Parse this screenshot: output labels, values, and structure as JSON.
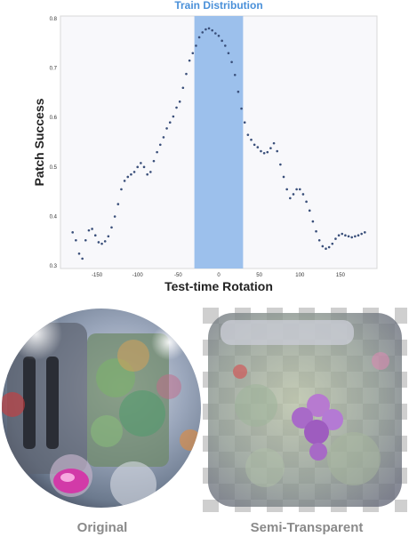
{
  "chart_data": {
    "type": "scatter",
    "title": "Train Distribution",
    "xlabel": "Test-time Rotation",
    "ylabel": "Patch Success",
    "xlim": [
      -195,
      195
    ],
    "ylim": [
      0.295,
      0.805
    ],
    "xticks": [
      -150,
      -100,
      -50,
      0,
      50,
      100,
      150
    ],
    "xtick_labels": [
      "-150",
      "-100",
      "-50",
      "0",
      "50",
      "100",
      "150"
    ],
    "yticks": [
      0.3,
      0.4,
      0.5,
      0.6,
      0.7,
      0.8
    ],
    "ytick_labels": [
      "0.3",
      "0.4",
      "0.5",
      "0.6",
      "0.7",
      "0.8"
    ],
    "shaded_region": [
      -30,
      30
    ],
    "colors": {
      "points": "#3a4f7a",
      "band": "#9cc0ec",
      "title": "#4a90d9",
      "plot_bg": "#f8f8fb"
    },
    "x": [
      -180,
      -176,
      -172,
      -168,
      -164,
      -160,
      -156,
      -152,
      -148,
      -144,
      -140,
      -136,
      -132,
      -128,
      -124,
      -120,
      -116,
      -112,
      -108,
      -104,
      -100,
      -96,
      -92,
      -88,
      -84,
      -80,
      -76,
      -72,
      -68,
      -64,
      -60,
      -56,
      -52,
      -48,
      -44,
      -40,
      -36,
      -32,
      -28,
      -24,
      -20,
      -16,
      -12,
      -8,
      -4,
      0,
      4,
      8,
      12,
      16,
      20,
      24,
      28,
      32,
      36,
      40,
      44,
      48,
      52,
      56,
      60,
      64,
      68,
      72,
      76,
      80,
      84,
      88,
      92,
      96,
      100,
      104,
      108,
      112,
      116,
      120,
      124,
      128,
      132,
      136,
      140,
      144,
      148,
      152,
      156,
      160,
      164,
      168,
      172,
      176,
      180
    ],
    "y": [
      0.368,
      0.352,
      0.325,
      0.315,
      0.352,
      0.372,
      0.375,
      0.362,
      0.348,
      0.345,
      0.35,
      0.36,
      0.378,
      0.4,
      0.425,
      0.455,
      0.472,
      0.48,
      0.485,
      0.49,
      0.5,
      0.508,
      0.5,
      0.485,
      0.49,
      0.512,
      0.53,
      0.545,
      0.56,
      0.578,
      0.59,
      0.602,
      0.62,
      0.632,
      0.66,
      0.688,
      0.715,
      0.73,
      0.745,
      0.762,
      0.772,
      0.778,
      0.78,
      0.776,
      0.77,
      0.765,
      0.755,
      0.745,
      0.73,
      0.712,
      0.686,
      0.652,
      0.618,
      0.59,
      0.565,
      0.555,
      0.545,
      0.54,
      0.532,
      0.528,
      0.53,
      0.538,
      0.548,
      0.532,
      0.505,
      0.48,
      0.455,
      0.437,
      0.445,
      0.455,
      0.455,
      0.445,
      0.43,
      0.412,
      0.39,
      0.37,
      0.352,
      0.34,
      0.335,
      0.338,
      0.345,
      0.355,
      0.362,
      0.365,
      0.362,
      0.36,
      0.358,
      0.36,
      0.362,
      0.365,
      0.368
    ]
  },
  "captions": {
    "original": "Original",
    "semi_transparent": "Semi-Transparent"
  }
}
